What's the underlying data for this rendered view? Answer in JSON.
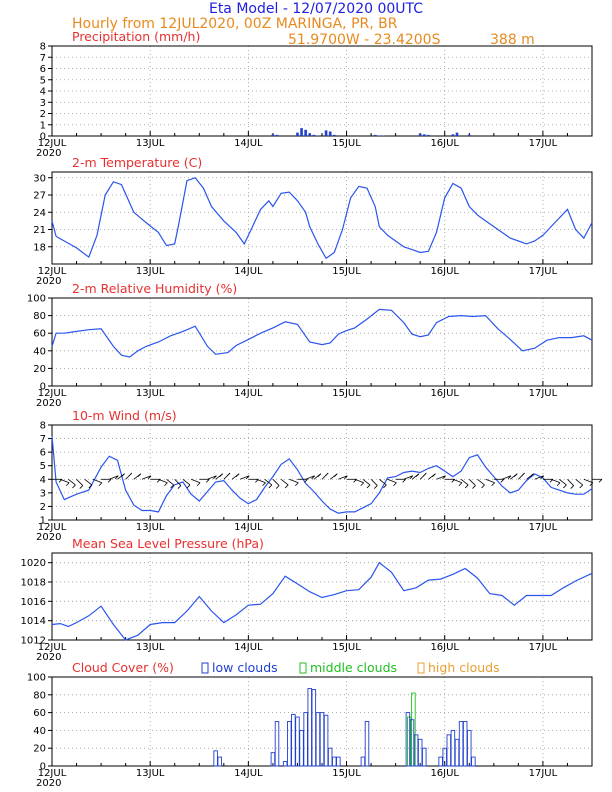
{
  "header": {
    "title": "Eta Model - 12/07/2020 00UTC",
    "line2": "Hourly from 12JUL2020, 00Z  MARINGA, PR, BR",
    "coords": "51.9700W - 23.4200S",
    "elevation": "388  m"
  },
  "colors": {
    "title": "#2020e0",
    "orange": "#e88a1e",
    "red": "#e83030",
    "line": "#2b55ee",
    "low": "#2040d0",
    "mid": "#20c020",
    "high": "#e8a030",
    "grid": "#999999",
    "wind": "#000000"
  },
  "x_axis": {
    "start_label": "12JUL",
    "year": "2020",
    "tick_labels": [
      "12JUL",
      "13JUL",
      "14JUL",
      "15JUL",
      "16JUL",
      "17JUL"
    ],
    "hours_total": 132,
    "hours_per_tick": 24
  },
  "chart_data": [
    {
      "id": "precip",
      "type": "bar",
      "title": "Precipitation (mm/h)",
      "ylim": [
        0,
        8
      ],
      "yticks": [
        0,
        1,
        2,
        3,
        4,
        5,
        6,
        7,
        8
      ],
      "x": [
        54,
        55,
        60,
        61,
        62,
        63,
        64,
        65,
        67,
        68,
        69,
        79,
        80,
        81,
        90,
        91,
        92,
        98,
        99,
        102
      ],
      "values": [
        0.15,
        0.1,
        0.3,
        0.7,
        0.55,
        0.25,
        0.1,
        0.05,
        0.5,
        0.4,
        0.1,
        0.1,
        0.05,
        0.05,
        0.2,
        0.15,
        0.1,
        0.15,
        0.3,
        0.1
      ]
    },
    {
      "id": "temp",
      "type": "line",
      "title": "2-m Temperature (C)",
      "ylim": [
        15,
        31
      ],
      "yticks": [
        18,
        21,
        24,
        27,
        30
      ],
      "x": [
        0,
        1,
        3,
        6,
        9,
        11,
        13,
        15,
        17,
        20,
        23,
        26,
        28,
        30,
        31,
        33,
        35,
        37,
        39,
        42,
        45,
        47,
        49,
        51,
        53,
        54,
        56,
        58,
        60,
        62,
        63,
        65,
        67,
        69,
        71,
        73,
        75,
        77,
        79,
        80,
        82,
        84,
        86,
        88,
        90,
        92,
        94,
        96,
        98,
        100,
        102,
        104,
        106,
        108,
        110,
        112,
        114,
        116,
        118,
        120,
        122,
        124,
        126,
        128,
        130,
        132
      ],
      "values": [
        22.5,
        19.8,
        19,
        17.8,
        16.2,
        20,
        27,
        29.3,
        28.8,
        24,
        22.2,
        20.5,
        18.2,
        18.5,
        22,
        29.5,
        30,
        28.2,
        25,
        22.5,
        20.5,
        18.5,
        21.5,
        24.5,
        26,
        25,
        27.3,
        27.5,
        26,
        24,
        21.5,
        18.5,
        16,
        17,
        21,
        26.5,
        28.5,
        28.2,
        25,
        21.5,
        20,
        19,
        18,
        17.5,
        17,
        17.2,
        20.5,
        26.5,
        29,
        28.2,
        25,
        23.5,
        22.5,
        21.5,
        20.5,
        19.5,
        19,
        18.5,
        19,
        20,
        21.5,
        23,
        24.5,
        21,
        19.5,
        22.2
      ]
    },
    {
      "id": "rh",
      "type": "line",
      "title": "2-m Relative Humidity (%)",
      "ylim": [
        0,
        100
      ],
      "yticks": [
        0,
        20,
        40,
        60,
        80,
        100
      ],
      "x": [
        0,
        1,
        3,
        6,
        9,
        12,
        15,
        17,
        19,
        21,
        23,
        26,
        29,
        32,
        35,
        38,
        40,
        43,
        45,
        48,
        51,
        54,
        57,
        60,
        63,
        66,
        68,
        70,
        72,
        74,
        77,
        80,
        83,
        86,
        88,
        90,
        92,
        94,
        97,
        100,
        103,
        106,
        109,
        112,
        115,
        118,
        121,
        124,
        127,
        130,
        132
      ],
      "values": [
        45,
        60,
        60,
        62,
        64,
        65,
        45,
        35,
        33,
        40,
        45,
        50,
        57,
        62,
        68,
        45,
        36,
        38,
        46,
        53,
        60,
        66,
        73,
        70,
        50,
        47,
        49,
        59,
        63,
        66,
        76,
        87,
        86,
        72,
        59,
        56,
        58,
        72,
        79,
        80,
        79,
        80,
        65,
        53,
        40,
        43,
        52,
        55,
        55,
        57,
        52
      ]
    },
    {
      "id": "wind",
      "type": "line+barbs",
      "title": "10-m Wind (m/s)",
      "ylim": [
        1,
        8
      ],
      "yticks": [
        1,
        2,
        3,
        4,
        5,
        6,
        7,
        8
      ],
      "barb_row": 4,
      "x": [
        0,
        1,
        3,
        6,
        9,
        12,
        14,
        16,
        18,
        20,
        22,
        24,
        26,
        28,
        30,
        32,
        34,
        36,
        38,
        40,
        42,
        44,
        46,
        48,
        50,
        52,
        54,
        56,
        58,
        60,
        62,
        64,
        66,
        68,
        70,
        72,
        74,
        76,
        78,
        80,
        82,
        84,
        86,
        88,
        90,
        92,
        94,
        96,
        98,
        100,
        102,
        104,
        106,
        108,
        110,
        112,
        114,
        116,
        118,
        120,
        122,
        124,
        126,
        128,
        130,
        132
      ],
      "values": [
        7.2,
        3.8,
        2.5,
        2.9,
        3.2,
        4.9,
        5.7,
        5.4,
        3.2,
        2.1,
        1.7,
        1.7,
        1.6,
        2.8,
        3.6,
        3.8,
        2.9,
        2.4,
        3.1,
        3.8,
        3.9,
        3.2,
        2.6,
        2.2,
        2.5,
        3.4,
        4.2,
        5.1,
        5.5,
        4.7,
        3.7,
        3.1,
        2.4,
        1.8,
        1.5,
        1.6,
        1.6,
        1.9,
        2.2,
        3.0,
        4.1,
        4.2,
        4.5,
        4.6,
        4.5,
        4.8,
        5.0,
        4.6,
        4.2,
        4.6,
        5.6,
        5.8,
        4.9,
        4.2,
        3.5,
        3.0,
        3.2,
        3.9,
        4.4,
        4.1,
        3.4,
        3.2,
        3.0,
        2.9,
        2.9,
        3.3
      ]
    },
    {
      "id": "mslp",
      "type": "line",
      "title": "Mean Sea Level Pressure (hPa)",
      "ylim": [
        1012,
        1021
      ],
      "yticks": [
        1012,
        1014,
        1016,
        1018,
        1020
      ],
      "x": [
        0,
        2,
        4,
        6,
        9,
        12,
        15,
        18,
        21,
        24,
        27,
        30,
        33,
        36,
        39,
        42,
        45,
        48,
        51,
        54,
        57,
        60,
        63,
        66,
        69,
        72,
        75,
        78,
        80,
        83,
        86,
        89,
        92,
        95,
        98,
        101,
        104,
        107,
        110,
        113,
        116,
        119,
        122,
        125,
        128,
        132
      ],
      "values": [
        1013.6,
        1013.7,
        1013.4,
        1013.8,
        1014.5,
        1015.5,
        1013.6,
        1012,
        1012.5,
        1013.6,
        1013.8,
        1013.8,
        1015,
        1016.5,
        1015,
        1013.8,
        1014.6,
        1015.6,
        1015.7,
        1016.8,
        1018.6,
        1017.8,
        1017,
        1016.4,
        1016.7,
        1017.1,
        1017.2,
        1018.5,
        1020,
        1019,
        1017.1,
        1017.4,
        1018.2,
        1018.3,
        1018.8,
        1019.4,
        1018.4,
        1016.8,
        1016.6,
        1015.6,
        1016.6,
        1016.6,
        1016.6,
        1017.4,
        1018.1,
        1018.9
      ]
    },
    {
      "id": "cloud",
      "type": "bar",
      "title": "Cloud Cover (%)",
      "ylim": [
        0,
        100
      ],
      "yticks": [
        0,
        20,
        40,
        60,
        80,
        100
      ],
      "legend": {
        "low": "low clouds",
        "middle": "middle clouds",
        "high": "high clouds"
      },
      "low": {
        "x": [
          40,
          41,
          54,
          55,
          57,
          58,
          59,
          60,
          61,
          62,
          63,
          64,
          65,
          66,
          67,
          68,
          69,
          70,
          76,
          77,
          87,
          88,
          89,
          90,
          91,
          95,
          96,
          97,
          98,
          99,
          100,
          101,
          102,
          103
        ],
        "values": [
          17,
          10,
          15,
          50,
          5,
          50,
          58,
          55,
          40,
          60,
          87,
          86,
          60,
          60,
          57,
          20,
          10,
          10,
          10,
          50,
          60,
          52,
          35,
          30,
          20,
          10,
          20,
          35,
          40,
          30,
          50,
          50,
          40,
          10
        ]
      },
      "middle": {
        "x": [
          87,
          88
        ],
        "values": [
          55,
          82
        ]
      },
      "high": {
        "x": [],
        "values": []
      }
    }
  ]
}
